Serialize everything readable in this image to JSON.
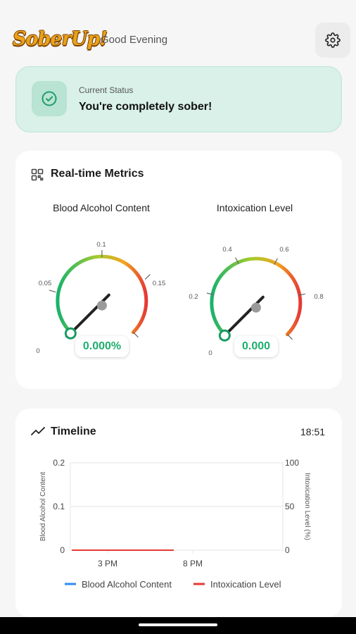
{
  "app": {
    "logo": "SoberUp!",
    "greeting": "Good Evening"
  },
  "icons": {
    "settings": "gear-icon",
    "status": "check-circle-icon",
    "metrics": "grid-icon",
    "timeline": "trend-line-icon"
  },
  "status": {
    "label": "Current Status",
    "value": "You're completely sober!"
  },
  "metrics": {
    "title": "Real-time Metrics",
    "bac": {
      "title": "Blood Alcohol Content",
      "value": 0.0,
      "display": "0.000%",
      "min": 0,
      "max": 0.2,
      "ticks": [
        "0",
        "0.05",
        "0.1",
        "0.15"
      ]
    },
    "intox": {
      "title": "Intoxication Level",
      "value": 0.0,
      "display": "0.000",
      "min": 0,
      "max": 1.0,
      "ticks": [
        "0",
        "0.2",
        "0.4",
        "0.6",
        "0.8"
      ]
    }
  },
  "timeline": {
    "title": "Timeline",
    "time": "18:51",
    "chart_data": {
      "type": "line",
      "x_ticks": [
        "3 PM",
        "8 PM"
      ],
      "left_axis": {
        "label": "Blood Alcohol Content",
        "ticks": [
          "0.2",
          "0.1",
          "0"
        ],
        "range": [
          0,
          0.2
        ]
      },
      "right_axis": {
        "label": "Intoxication Level (%)",
        "ticks": [
          "100",
          "50",
          "0"
        ],
        "range": [
          0,
          100
        ]
      },
      "series": [
        {
          "name": "Blood Alcohol Content",
          "color": "#2f8cf0",
          "values": [
            0,
            0
          ]
        },
        {
          "name": "Intoxication Level",
          "color": "#e53935",
          "values": [
            0,
            0
          ]
        }
      ],
      "legend": "bottom"
    }
  },
  "colors": {
    "accent": "#1fae6e",
    "status_bg": "#d9f1e8"
  }
}
